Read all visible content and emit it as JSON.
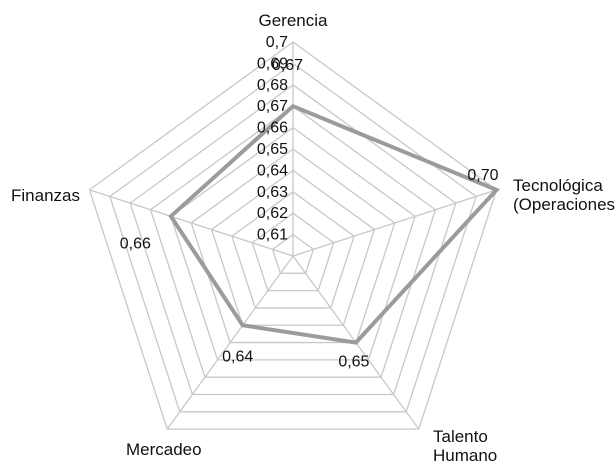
{
  "chart_data": {
    "type": "radar",
    "categories": [
      "Gerencia",
      "Tecnológica\n(Operaciones)",
      "Talento\nHumano",
      "Mercadeo",
      "Finanzas"
    ],
    "values": [
      0.67,
      0.7,
      0.65,
      0.64,
      0.66
    ],
    "data_labels": [
      "0,67",
      "0,70",
      "0,65",
      "0,64",
      "0,66"
    ],
    "axis": {
      "min": 0.6,
      "max": 0.7,
      "ticks": [
        0.61,
        0.62,
        0.63,
        0.64,
        0.65,
        0.66,
        0.67,
        0.68,
        0.69,
        0.7
      ],
      "tick_labels": [
        "0,61",
        "0,62",
        "0,63",
        "0,64",
        "0,65",
        "0,66",
        "0,67",
        "0,68",
        "0,69",
        "0,7"
      ]
    },
    "grid": true,
    "legend": "none",
    "colors": {
      "series": "#9b9b9b",
      "grid": "#c8c8c8"
    }
  }
}
